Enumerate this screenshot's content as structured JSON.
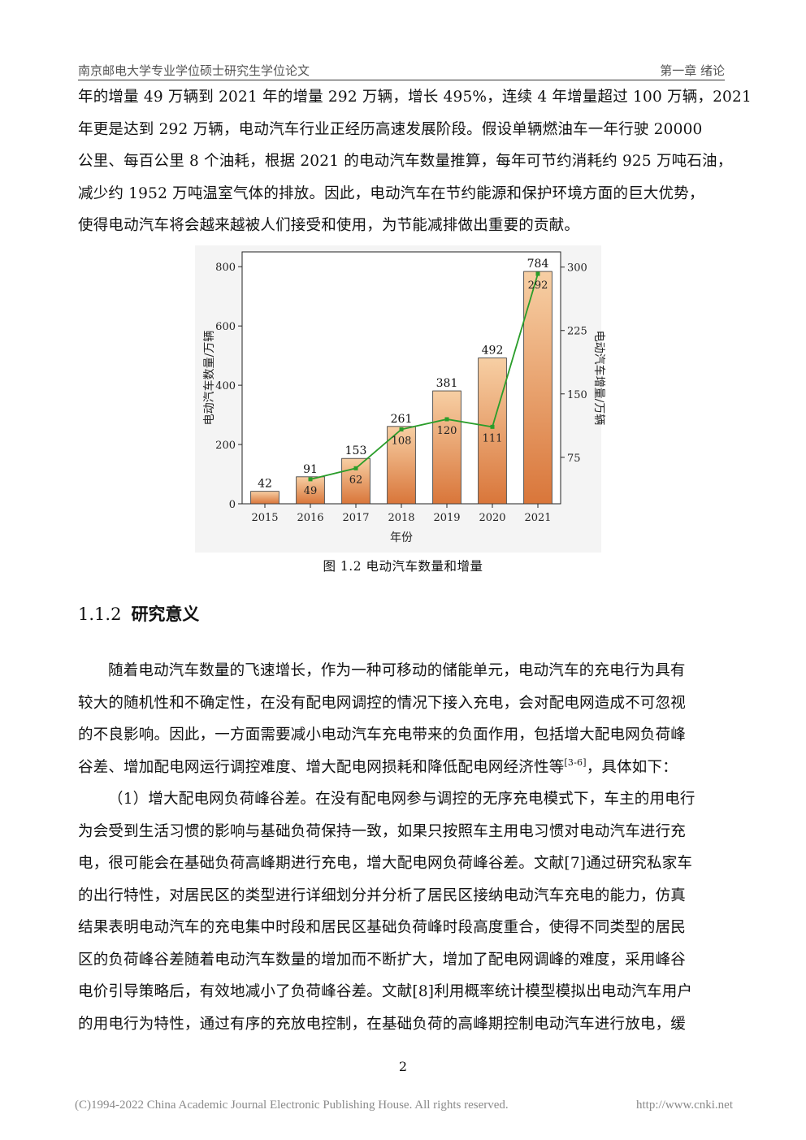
{
  "header": {
    "left": "南京邮电大学专业学位硕士研究生学位论文",
    "right": "第一章  绪论"
  },
  "para1": [
    "年的增量 49 万辆到 2021 年的增量 292 万辆，增长 495%，连续 4 年增量超过 100 万辆，2021",
    "年更是达到 292 万辆，电动汽车行业正经历高速发展阶段。假设单辆燃油车一年行驶 20000",
    "公里、每百公里 8 个油耗，根据 2021 的电动汽车数量推算，每年可节约消耗约 925 万吨石油，",
    "减少约 1952 万吨温室气体的排放。因此，电动汽车在节约能源和保护环境方面的巨大优势，",
    "使得电动汽车将会越来越被人们接受和使用，为节能减排做出重要的贡献。"
  ],
  "chart_data": {
    "type": "bar",
    "title": "",
    "categories": [
      "2015",
      "2016",
      "2017",
      "2018",
      "2019",
      "2020",
      "2021"
    ],
    "series": [
      {
        "values": [
          42,
          91,
          153,
          261,
          381,
          492,
          784
        ],
        "type": "bar",
        "axis": "left",
        "color": "#e8924f"
      },
      {
        "values": [
          null,
          49,
          62,
          108,
          120,
          111,
          292
        ],
        "type": "line",
        "axis": "right",
        "color": "#2a9d2a"
      }
    ],
    "xlabel": "年份",
    "ylabel": "电动汽车数量/万辆",
    "y2label": "电动汽车增量/万辆",
    "ylim": [
      0,
      850
    ],
    "y2lim": [
      20,
      318
    ],
    "yticks": [
      0,
      200,
      400,
      600,
      800
    ],
    "y2ticks": [
      75,
      150,
      225,
      300
    ],
    "grid": false
  },
  "caption": "图 1.2  电动汽车数量和增量",
  "section": {
    "num": "1.1.2",
    "title": "研究意义"
  },
  "para2": [
    {
      "text": "随着电动汽车数量的飞速增长，作为一种可移动的储能单元，电动汽车的充电行为具有",
      "indent": true
    },
    {
      "text": "较大的随机性和不确定性，在没有配电网调控的情况下接入充电，会对配电网造成不可忽视",
      "indent": false
    },
    {
      "text": "的不良影响。因此，一方面需要减小电动汽车充电带来的负面作用，包括增大配电网负荷峰",
      "indent": false
    },
    {
      "text": "谷差、增加配电网运行调控难度、增大配电网损耗和降低配电网经济性等",
      "indent": false,
      "sup": "[3-6]",
      "after": "，具体如下："
    },
    {
      "text": "（1）增大配电网负荷峰谷差。在没有配电网参与调控的无序充电模式下，车主的用电行",
      "indent": true
    },
    {
      "text": "为会受到生活习惯的影响与基础负荷保持一致，如果只按照车主用电习惯对电动汽车进行充",
      "indent": false
    },
    {
      "text": "电，很可能会在基础负荷高峰期进行充电，增大配电网负荷峰谷差。文献[7]通过研究私家车",
      "indent": false
    },
    {
      "text": "的出行特性，对居民区的类型进行详细划分并分析了居民区接纳电动汽车充电的能力，仿真",
      "indent": false
    },
    {
      "text": "结果表明电动汽车的充电集中时段和居民区基础负荷峰时段高度重合，使得不同类型的居民",
      "indent": false
    },
    {
      "text": "区的负荷峰谷差随着电动汽车数量的增加而不断扩大，增加了配电网调峰的难度，采用峰谷",
      "indent": false
    },
    {
      "text": "电价引导策略后，有效地减小了负荷峰谷差。文献[8]利用概率统计模型模拟出电动汽车用户",
      "indent": false
    },
    {
      "text": "的用电行为特性，通过有序的充放电控制，在基础负荷的高峰期控制电动汽车进行放电，缓",
      "indent": false
    }
  ],
  "page_number": "2",
  "footer": {
    "left": "(C)1994-2022 China Academic Journal Electronic Publishing House. All rights reserved.",
    "right": "http://www.cnki.net"
  }
}
